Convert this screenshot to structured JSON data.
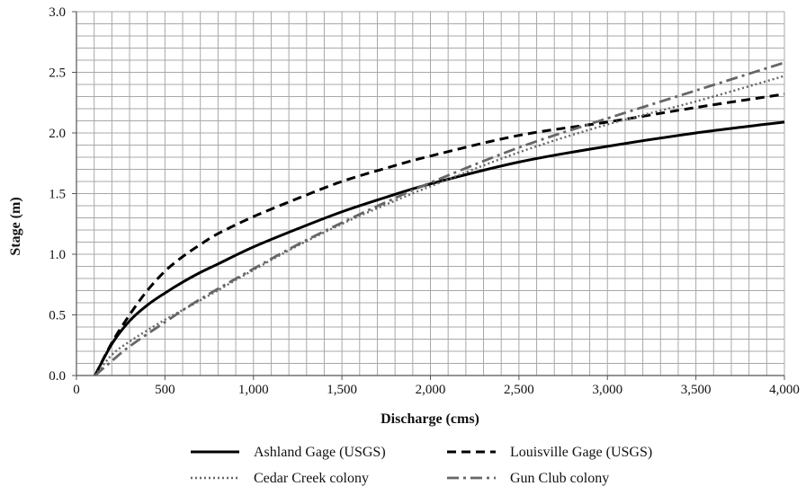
{
  "chart_data": {
    "type": "line",
    "title": "",
    "xlabel": "Discharge (cms)",
    "ylabel": "Stage (m)",
    "xlim": [
      0,
      4000
    ],
    "ylim": [
      0,
      3.0
    ],
    "x_ticks": [
      0,
      500,
      1000,
      1500,
      2000,
      2500,
      3000,
      3500,
      4000
    ],
    "x_tick_labels": [
      "0",
      "500",
      "1,000",
      "1,500",
      "2,000",
      "2,500",
      "3,000",
      "3,500",
      "4,000"
    ],
    "y_ticks": [
      0,
      0.5,
      1.0,
      1.5,
      2.0,
      2.5,
      3.0
    ],
    "y_tick_labels": [
      "0.0",
      "0.5",
      "1.0",
      "1.5",
      "2.0",
      "2.5",
      "3.0"
    ],
    "grid": true,
    "legend_position": "bottom",
    "series": [
      {
        "name": "Ashland Gage (USGS)",
        "color": "#000000",
        "style": "solid",
        "x": [
          105,
          200,
          300,
          400,
          500,
          600,
          700,
          800,
          1000,
          1250,
          1500,
          1750,
          2000,
          2500,
          3000,
          3500,
          4000
        ],
        "y": [
          0.0,
          0.26,
          0.45,
          0.58,
          0.68,
          0.77,
          0.85,
          0.92,
          1.06,
          1.21,
          1.35,
          1.47,
          1.58,
          1.76,
          1.89,
          2.0,
          2.09
        ]
      },
      {
        "name": "Louisville Gage (USGS)",
        "color": "#000000",
        "style": "dashed",
        "x": [
          105,
          200,
          300,
          400,
          500,
          600,
          700,
          800,
          1000,
          1250,
          1500,
          1750,
          2000,
          2500,
          3000,
          3500,
          4000
        ],
        "y": [
          0.0,
          0.27,
          0.5,
          0.7,
          0.86,
          0.98,
          1.08,
          1.17,
          1.31,
          1.46,
          1.6,
          1.71,
          1.81,
          1.98,
          2.09,
          2.21,
          2.32
        ]
      },
      {
        "name": "Cedar Creek colony",
        "color": "#666666",
        "style": "dotted",
        "x": [
          105,
          200,
          300,
          500,
          700,
          1000,
          1250,
          1500,
          1750,
          2000,
          2500,
          3000,
          3500,
          4000
        ],
        "y": [
          0.0,
          0.17,
          0.28,
          0.46,
          0.62,
          0.87,
          1.07,
          1.25,
          1.41,
          1.56,
          1.84,
          2.07,
          2.26,
          2.47
        ]
      },
      {
        "name": "Gun Club colony",
        "color": "#666666",
        "style": "dashdot",
        "x": [
          105,
          200,
          300,
          500,
          700,
          1000,
          1250,
          1500,
          1750,
          2000,
          2500,
          3000,
          3500,
          4000
        ],
        "y": [
          0.0,
          0.12,
          0.24,
          0.44,
          0.63,
          0.88,
          1.08,
          1.26,
          1.43,
          1.59,
          1.88,
          2.12,
          2.35,
          2.58
        ]
      }
    ]
  }
}
